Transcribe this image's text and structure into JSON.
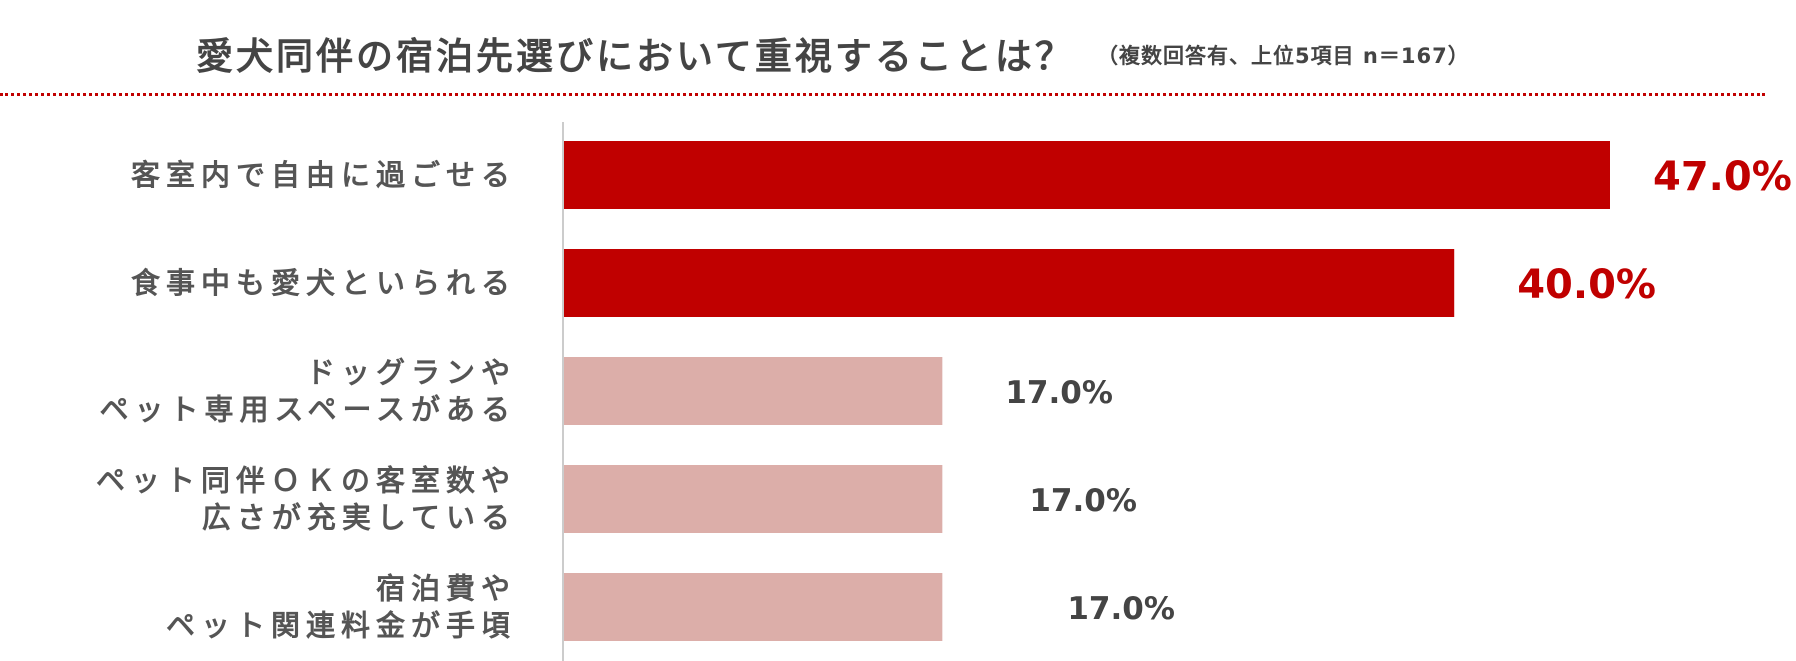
{
  "title": "愛犬同伴の宿泊先選びにおいて重視することは？",
  "subtitle": "（複数回答有、上位5項目 n＝167）",
  "colors": {
    "highlight": "#c00000",
    "muted": "#dcaea9",
    "divider": "#c00000",
    "text": "#444444"
  },
  "chart_data": {
    "type": "bar",
    "orientation": "horizontal",
    "categories": [
      "客室内で自由に過ごせる",
      "食事中も愛犬といられる",
      "ドッグランやペット専用スペースがある",
      "ペット同伴ＯＫの客室数や広さが充実している",
      "宿泊費やペット関連料金が手頃"
    ],
    "category_lines": [
      [
        "客室内で自由に過ごせる"
      ],
      [
        "食事中も愛犬といられる"
      ],
      [
        "ドッグランや",
        "ペット専用スペースがある"
      ],
      [
        "ペット同伴ＯＫの客室数や",
        "広さが充実している"
      ],
      [
        "宿泊費や",
        "ペット関連料金が手頃"
      ]
    ],
    "values": [
      47.0,
      40.0,
      17.0,
      17.0,
      17.0
    ],
    "value_labels": [
      "47.0%",
      "40.0%",
      "17.0%",
      "17.0%",
      "17.0%"
    ],
    "highlighted": [
      true,
      true,
      false,
      false,
      false
    ],
    "xlim": [
      0,
      50
    ],
    "unit": "%",
    "grid": false,
    "legend": "none"
  }
}
